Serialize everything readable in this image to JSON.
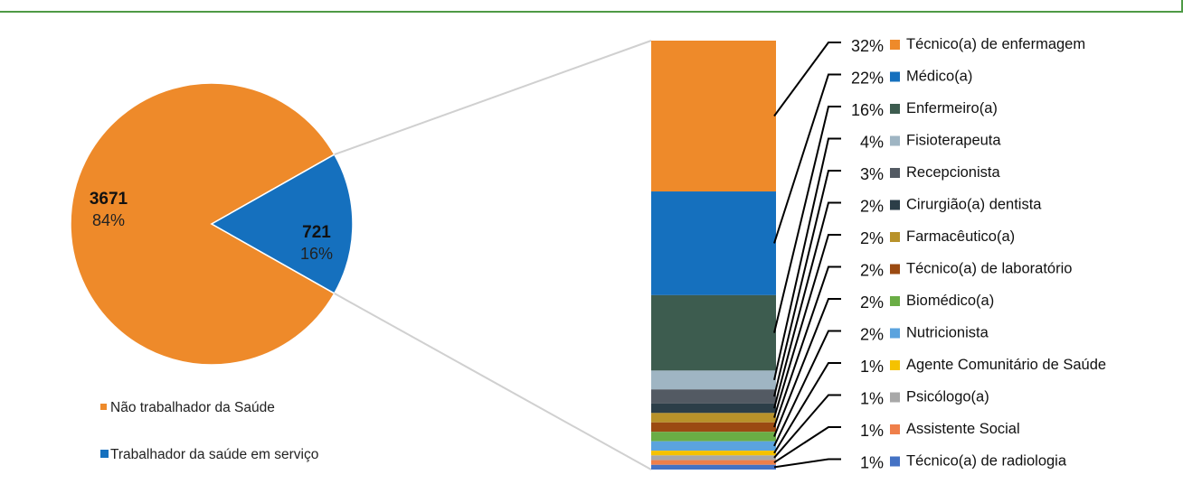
{
  "chart_data": {
    "type": "pie",
    "colors": {
      "topbar": "#4e9a45",
      "connector": "#d0d0d0",
      "leader": "#000000"
    },
    "pie": {
      "slices": [
        {
          "label": "Não trabalhador da Saúde",
          "count": "3671",
          "percent": "84%",
          "value": 3671,
          "color": "#ee8a2a"
        },
        {
          "label": "Trabalhador da saúde em serviço",
          "count": "721",
          "percent": "16%",
          "value": 721,
          "color": "#1570be"
        }
      ]
    },
    "breakdown": {
      "type": "stacked-bar",
      "series": [
        {
          "label": "Técnico(a) de enfermagem",
          "percent": "32%",
          "value": 32,
          "color": "#ee8a2a"
        },
        {
          "label": "Médico(a)",
          "percent": "22%",
          "value": 22,
          "color": "#1570be"
        },
        {
          "label": "Enfermeiro(a)",
          "percent": "16%",
          "value": 16,
          "color": "#3d5c4f"
        },
        {
          "label": "Fisioterapeuta",
          "percent": "4%",
          "value": 4,
          "color": "#9fb5c3"
        },
        {
          "label": "Recepcionista",
          "percent": "3%",
          "value": 3,
          "color": "#535a63"
        },
        {
          "label": "Cirurgião(a) dentista",
          "percent": "2%",
          "value": 2,
          "color": "#2c3e48"
        },
        {
          "label": "Farmacêutico(a)",
          "percent": "2%",
          "value": 2,
          "color": "#b8922a"
        },
        {
          "label": "Técnico(a) de laboratório",
          "percent": "2%",
          "value": 2,
          "color": "#9b4a12"
        },
        {
          "label": "Biomédico(a)",
          "percent": "2%",
          "value": 2,
          "color": "#6aad45"
        },
        {
          "label": "Nutricionista",
          "percent": "2%",
          "value": 2,
          "color": "#5ba3de"
        },
        {
          "label": "Agente Comunitário de Saúde",
          "percent": "1%",
          "value": 1,
          "color": "#f5c200"
        },
        {
          "label": "Psicólogo(a)",
          "percent": "1%",
          "value": 1,
          "color": "#a8a8a8"
        },
        {
          "label": "Assistente Social",
          "percent": "1%",
          "value": 1,
          "color": "#ef7f4a"
        },
        {
          "label": "Técnico(a) de radiologia",
          "percent": "1%",
          "value": 1,
          "color": "#4472c4"
        }
      ]
    }
  }
}
